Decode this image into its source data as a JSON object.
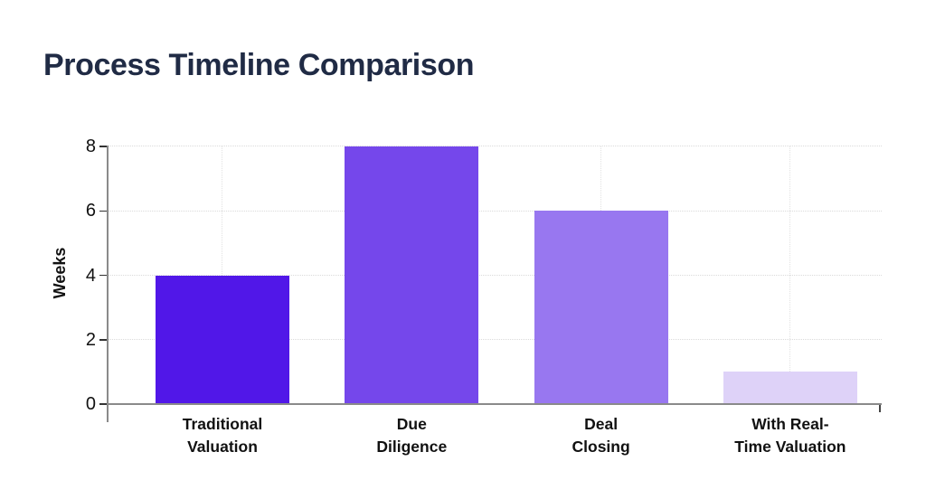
{
  "page": {
    "background": "#ffffff"
  },
  "chart_data": {
    "type": "bar",
    "title": "Process Timeline Comparison",
    "title_color": "#202b45",
    "xlabel": "",
    "ylabel": "Weeks",
    "categories": [
      "Traditional\nValuation",
      "Due\nDiligence",
      "Deal\nClosing",
      "With Real-\nTime Valuation"
    ],
    "values": [
      4,
      8,
      6,
      1
    ],
    "bar_colors": [
      "#5117e8",
      "#7547eb",
      "#9877f0",
      "#ded2f8"
    ],
    "yticks": [
      0,
      2,
      4,
      6,
      8
    ],
    "ylim": [
      0,
      8
    ],
    "legend": "none",
    "grid": {
      "horizontal": "dotted",
      "vertical_category_guides": "dotted",
      "color": "#dadada"
    },
    "axis_color": "#8a8a8a",
    "tick_text_color": "#111111"
  }
}
